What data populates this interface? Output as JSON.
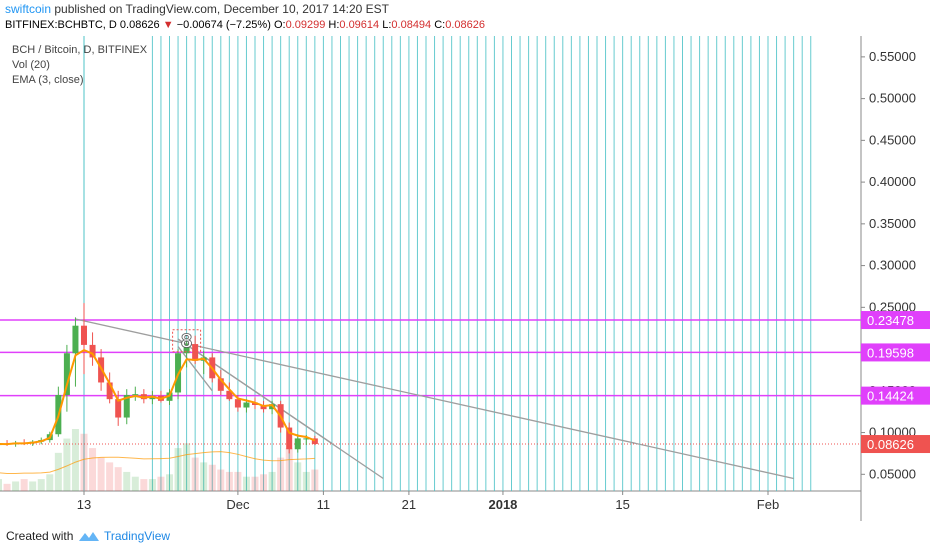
{
  "header": {
    "author": "swiftcoin",
    "published": "published on TradingView.com, December 10, 2017 14:20 EST",
    "symbol": "BITFINEX:BCHBTC, D",
    "last": "0.08626",
    "change": "−0.00674 (−7.25%)",
    "o_label": "O:",
    "o": "0.09299",
    "h_label": "H:",
    "h": "0.09614",
    "l_label": "L:",
    "l": "0.08494",
    "c_label": "C:",
    "c": "0.08626"
  },
  "legend": {
    "title": "BCH / Bitcoin, D, BITFINEX",
    "vol": "Vol (20)",
    "ema": "EMA (3, close)"
  },
  "footer": {
    "created": "Created with",
    "brand": "TradingView"
  },
  "colors": {
    "up": "#4caf50",
    "down": "#ef5350",
    "ema": "#ff9800",
    "level": "#e040fb",
    "grid_line": "#4dc3c7",
    "trend": "#9e9e9e",
    "last_price": "#ef5350"
  },
  "icons": [
    "triangle-down-icon",
    "tradingview-logo-icon"
  ],
  "chart_data": {
    "type": "candlestick",
    "title": "BCH / Bitcoin, D, BITFINEX",
    "xlabel": "",
    "ylabel": "",
    "ylim": [
      0.03,
      0.575
    ],
    "x_ticks": [
      {
        "label": "13",
        "date": "2017-11-13",
        "bold": false
      },
      {
        "label": "Dec",
        "date": "2017-12-01",
        "bold": false
      },
      {
        "label": "11",
        "date": "2017-12-11",
        "bold": false
      },
      {
        "label": "21",
        "date": "2017-12-21",
        "bold": false
      },
      {
        "label": "2018",
        "date": "2018-01-01",
        "bold": true
      },
      {
        "label": "15",
        "date": "2018-01-15",
        "bold": false
      },
      {
        "label": "Feb",
        "date": "2018-02-01",
        "bold": false
      }
    ],
    "y_ticks": [
      0.05,
      0.1,
      0.15,
      0.2,
      0.25,
      0.3,
      0.35,
      0.4,
      0.45,
      0.5,
      0.55
    ],
    "y_tick_labels": [
      "0.05000",
      "0.10000",
      "0.15000",
      "0.20000",
      "0.25000",
      "0.30000",
      "0.35000",
      "0.40000",
      "0.45000",
      "0.50000",
      "0.55000"
    ],
    "candles": [
      {
        "date": "2017-11-01",
        "o": 0.084,
        "h": 0.088,
        "l": 0.081,
        "c": 0.086
      },
      {
        "date": "2017-11-02",
        "o": 0.086,
        "h": 0.089,
        "l": 0.082,
        "c": 0.085
      },
      {
        "date": "2017-11-03",
        "o": 0.085,
        "h": 0.09,
        "l": 0.083,
        "c": 0.087
      },
      {
        "date": "2017-11-04",
        "o": 0.087,
        "h": 0.091,
        "l": 0.084,
        "c": 0.086
      },
      {
        "date": "2017-11-05",
        "o": 0.086,
        "h": 0.09,
        "l": 0.083,
        "c": 0.088
      },
      {
        "date": "2017-11-06",
        "o": 0.088,
        "h": 0.092,
        "l": 0.085,
        "c": 0.087
      },
      {
        "date": "2017-11-07",
        "o": 0.087,
        "h": 0.091,
        "l": 0.084,
        "c": 0.089
      },
      {
        "date": "2017-11-08",
        "o": 0.089,
        "h": 0.094,
        "l": 0.086,
        "c": 0.091
      },
      {
        "date": "2017-11-09",
        "o": 0.091,
        "h": 0.101,
        "l": 0.088,
        "c": 0.098
      },
      {
        "date": "2017-11-10",
        "o": 0.098,
        "h": 0.155,
        "l": 0.095,
        "c": 0.145
      },
      {
        "date": "2017-11-11",
        "o": 0.145,
        "h": 0.205,
        "l": 0.125,
        "c": 0.195
      },
      {
        "date": "2017-11-12",
        "o": 0.195,
        "h": 0.238,
        "l": 0.155,
        "c": 0.228
      },
      {
        "date": "2017-11-13",
        "o": 0.228,
        "h": 0.255,
        "l": 0.17,
        "c": 0.205
      },
      {
        "date": "2017-11-14",
        "o": 0.205,
        "h": 0.22,
        "l": 0.18,
        "c": 0.19
      },
      {
        "date": "2017-11-15",
        "o": 0.19,
        "h": 0.2,
        "l": 0.15,
        "c": 0.16
      },
      {
        "date": "2017-11-16",
        "o": 0.16,
        "h": 0.172,
        "l": 0.135,
        "c": 0.14
      },
      {
        "date": "2017-11-17",
        "o": 0.14,
        "h": 0.15,
        "l": 0.108,
        "c": 0.118
      },
      {
        "date": "2017-11-18",
        "o": 0.118,
        "h": 0.152,
        "l": 0.11,
        "c": 0.145
      },
      {
        "date": "2017-11-19",
        "o": 0.145,
        "h": 0.155,
        "l": 0.138,
        "c": 0.146
      },
      {
        "date": "2017-11-20",
        "o": 0.146,
        "h": 0.152,
        "l": 0.135,
        "c": 0.14
      },
      {
        "date": "2017-11-21",
        "o": 0.14,
        "h": 0.15,
        "l": 0.134,
        "c": 0.144
      },
      {
        "date": "2017-11-22",
        "o": 0.144,
        "h": 0.15,
        "l": 0.136,
        "c": 0.138
      },
      {
        "date": "2017-11-23",
        "o": 0.138,
        "h": 0.152,
        "l": 0.133,
        "c": 0.148
      },
      {
        "date": "2017-11-24",
        "o": 0.148,
        "h": 0.2,
        "l": 0.14,
        "c": 0.195
      },
      {
        "date": "2017-11-25",
        "o": 0.195,
        "h": 0.213,
        "l": 0.178,
        "c": 0.206
      },
      {
        "date": "2017-11-26",
        "o": 0.206,
        "h": 0.216,
        "l": 0.182,
        "c": 0.186
      },
      {
        "date": "2017-11-27",
        "o": 0.186,
        "h": 0.198,
        "l": 0.17,
        "c": 0.19
      },
      {
        "date": "2017-11-28",
        "o": 0.19,
        "h": 0.195,
        "l": 0.16,
        "c": 0.165
      },
      {
        "date": "2017-11-29",
        "o": 0.165,
        "h": 0.175,
        "l": 0.145,
        "c": 0.15
      },
      {
        "date": "2017-11-30",
        "o": 0.15,
        "h": 0.16,
        "l": 0.138,
        "c": 0.14
      },
      {
        "date": "2017-12-01",
        "o": 0.14,
        "h": 0.145,
        "l": 0.125,
        "c": 0.13
      },
      {
        "date": "2017-12-02",
        "o": 0.13,
        "h": 0.14,
        "l": 0.124,
        "c": 0.136
      },
      {
        "date": "2017-12-03",
        "o": 0.136,
        "h": 0.142,
        "l": 0.128,
        "c": 0.133
      },
      {
        "date": "2017-12-04",
        "o": 0.133,
        "h": 0.138,
        "l": 0.124,
        "c": 0.128
      },
      {
        "date": "2017-12-05",
        "o": 0.128,
        "h": 0.138,
        "l": 0.122,
        "c": 0.134
      },
      {
        "date": "2017-12-06",
        "o": 0.134,
        "h": 0.138,
        "l": 0.1,
        "c": 0.106
      },
      {
        "date": "2017-12-07",
        "o": 0.106,
        "h": 0.112,
        "l": 0.075,
        "c": 0.08
      },
      {
        "date": "2017-12-08",
        "o": 0.08,
        "h": 0.098,
        "l": 0.076,
        "c": 0.093
      },
      {
        "date": "2017-12-09",
        "o": 0.093,
        "h": 0.097,
        "l": 0.085,
        "c": 0.093
      },
      {
        "date": "2017-12-10",
        "o": 0.09299,
        "h": 0.09614,
        "l": 0.08494,
        "c": 0.08626
      }
    ],
    "ema_series": {
      "name": "EMA (3, close)"
    },
    "volume": {
      "name": "Vol (20)",
      "values": [
        4,
        4,
        5,
        3,
        4,
        5,
        4,
        5,
        7,
        16,
        22,
        26,
        24,
        18,
        14,
        12,
        10,
        8,
        6,
        5,
        5,
        6,
        7,
        18,
        20,
        14,
        12,
        11,
        9,
        8,
        8,
        6,
        6,
        7,
        8,
        14,
        18,
        12,
        8,
        9
      ]
    },
    "horizontal_levels": [
      {
        "value": 0.23478,
        "label": "0.23478",
        "type": "resistance"
      },
      {
        "value": 0.19598,
        "label": "0.19598",
        "type": "resistance"
      },
      {
        "value": 0.14424,
        "label": "0.14424",
        "type": "resistance"
      }
    ],
    "last_price": {
      "value": 0.08626,
      "label": "0.08626"
    },
    "trend_lines": [
      {
        "from": {
          "date": "2017-11-12",
          "price": 0.236
        },
        "to": {
          "date": "2018-02-04",
          "price": 0.045
        }
      },
      {
        "from": {
          "date": "2017-11-24",
          "price": 0.212
        },
        "to": {
          "date": "2017-12-12",
          "price": 0.087
        }
      },
      {
        "from": {
          "date": "2017-11-24",
          "price": 0.212
        },
        "to": {
          "date": "2017-12-18",
          "price": 0.045
        }
      },
      {
        "from": {
          "date": "2017-11-24",
          "price": 0.203
        },
        "to": {
          "date": "2017-11-28",
          "price": 0.15
        }
      }
    ],
    "annotation": {
      "text": "8",
      "date": "2017-11-25",
      "price": 0.204
    },
    "cycle_lines_start": "2017-11-21",
    "cycle_lines_end": "2018-02-06",
    "grid": false,
    "legend_position": "top-left"
  }
}
